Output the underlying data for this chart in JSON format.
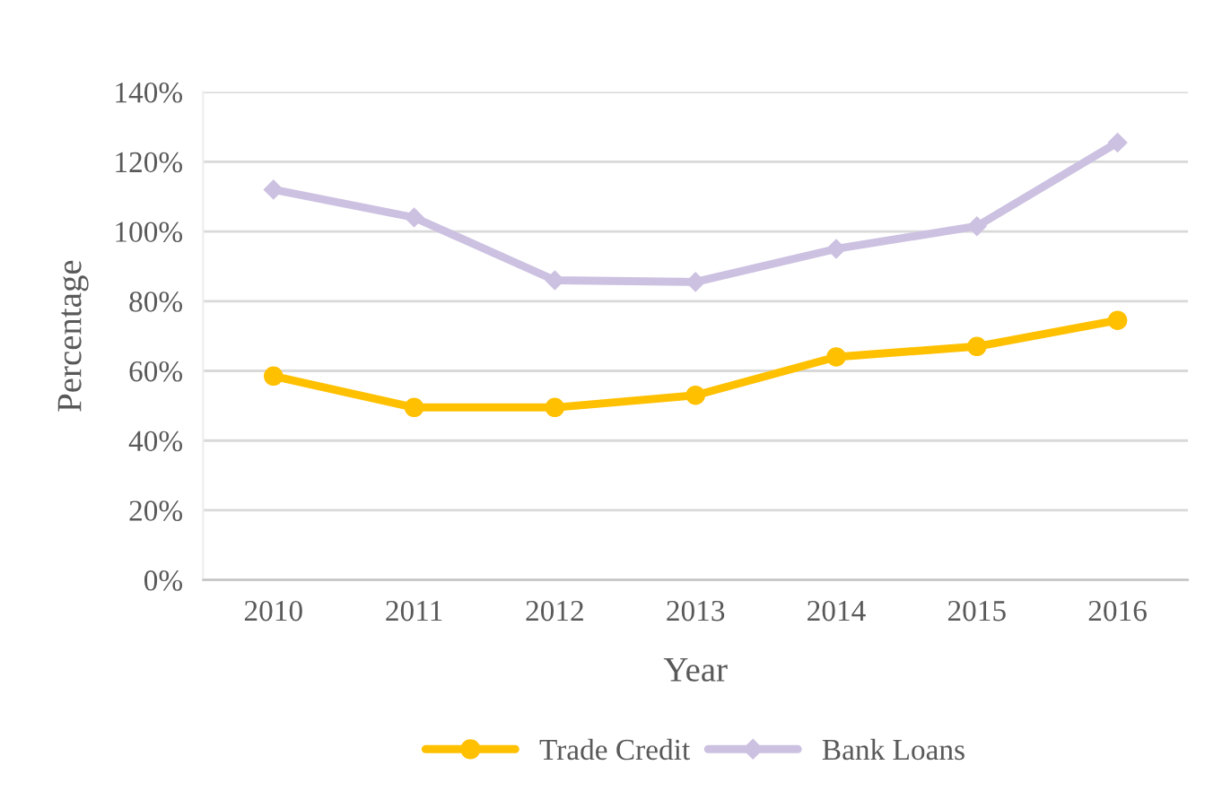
{
  "chart_data": {
    "type": "line",
    "xlabel": "Year",
    "ylabel": "Percentage",
    "categories": [
      "2010",
      "2011",
      "2012",
      "2013",
      "2014",
      "2015",
      "2016"
    ],
    "series": [
      {
        "name": "Trade Credit",
        "color": "#ffc000",
        "marker": "circle",
        "values": [
          58.5,
          49.5,
          49.5,
          53,
          64,
          67,
          74.5
        ]
      },
      {
        "name": "Bank Loans",
        "color": "#ccc1e1",
        "marker": "diamond",
        "values": [
          112,
          104,
          86,
          85.5,
          95,
          101.5,
          125.5
        ]
      }
    ],
    "ylim": [
      0,
      140
    ],
    "yticks": [
      {
        "value": 0,
        "label": "0%"
      },
      {
        "value": 20,
        "label": "20%"
      },
      {
        "value": 40,
        "label": "40%"
      },
      {
        "value": 60,
        "label": "60%"
      },
      {
        "value": 80,
        "label": "80%"
      },
      {
        "value": 100,
        "label": "100%"
      },
      {
        "value": 120,
        "label": "120%"
      },
      {
        "value": 140,
        "label": "140%"
      }
    ],
    "grid": "y",
    "legend": "bottom",
    "line_style": "solid"
  }
}
